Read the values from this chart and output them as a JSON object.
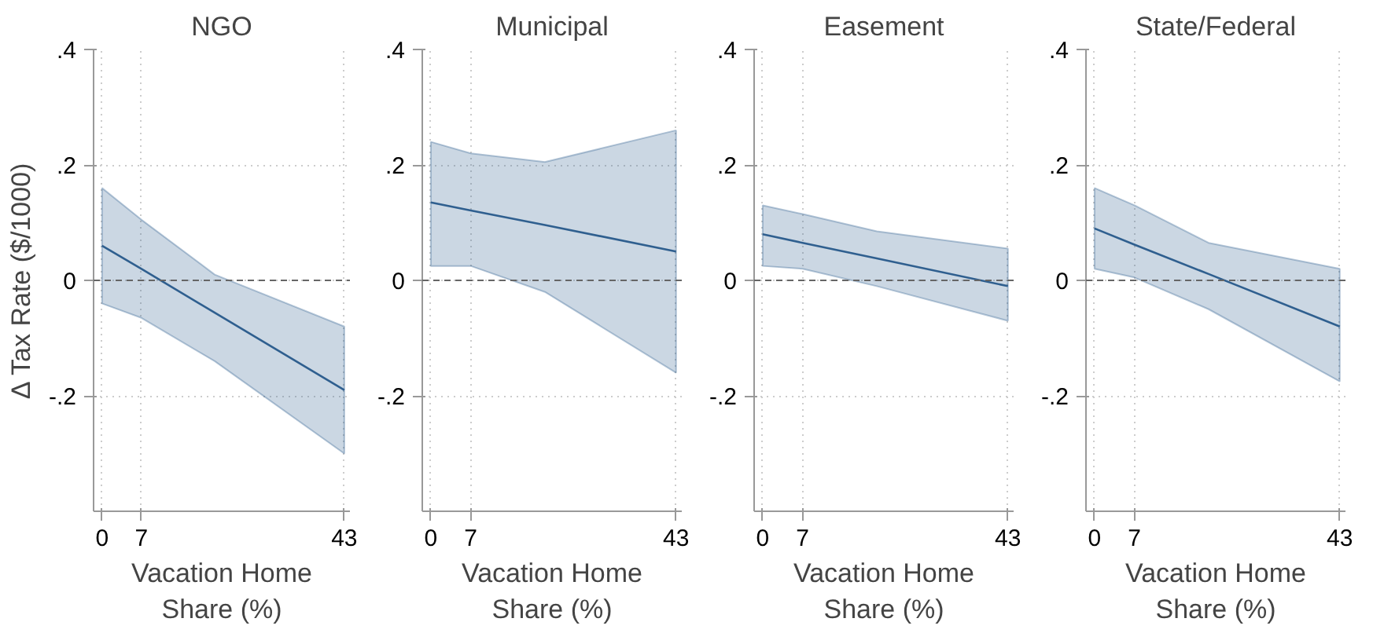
{
  "chart_data": [
    {
      "type": "line",
      "title": "NGO",
      "xlabel": "Vacation Home Share (%)",
      "ylabel": "Δ Tax Rate ($/1000)",
      "x": [
        0,
        7,
        20,
        43
      ],
      "xlim": [
        -1.5,
        44
      ],
      "xticks": [
        0,
        7,
        43
      ],
      "ylim": [
        -0.4,
        0.4
      ],
      "yticks": [
        {
          "value": 0.4,
          "label": ".4"
        },
        {
          "value": 0.2,
          "label": ".2"
        },
        {
          "value": 0,
          "label": "0"
        },
        {
          "value": -0.2,
          "label": "-.2"
        }
      ],
      "grid": true,
      "ref_lines": [
        {
          "axis": "y",
          "value": 0,
          "line_style": "dashed",
          "color": "#666666"
        }
      ],
      "series": [
        {
          "color": "#2f5f8f",
          "values": [
            0.06,
            0.02,
            -0.056,
            -0.19
          ],
          "lower": [
            -0.04,
            -0.065,
            -0.14,
            -0.3
          ],
          "upper": [
            0.16,
            0.105,
            0.01,
            -0.08
          ]
        }
      ]
    },
    {
      "type": "line",
      "title": "Municipal",
      "xlabel": "Vacation Home Share (%)",
      "x": [
        0,
        7,
        20,
        43
      ],
      "xlim": [
        -1.5,
        44
      ],
      "xticks": [
        0,
        7,
        43
      ],
      "ylim": [
        -0.4,
        0.4
      ],
      "yticks": [
        {
          "value": 0.4,
          "label": ".4"
        },
        {
          "value": 0.2,
          "label": ".2"
        },
        {
          "value": 0,
          "label": "0"
        },
        {
          "value": -0.2,
          "label": "-.2"
        }
      ],
      "grid": true,
      "ref_lines": [
        {
          "axis": "y",
          "value": 0,
          "line_style": "dashed",
          "color": "#666666"
        }
      ],
      "series": [
        {
          "color": "#2f5f8f",
          "values": [
            0.135,
            0.121,
            0.096,
            0.05
          ],
          "lower": [
            0.025,
            0.025,
            -0.02,
            -0.16
          ],
          "upper": [
            0.24,
            0.22,
            0.205,
            0.26
          ]
        }
      ]
    },
    {
      "type": "line",
      "title": "Easement",
      "xlabel": "Vacation Home Share (%)",
      "x": [
        0,
        7,
        20,
        43
      ],
      "xlim": [
        -1.5,
        44
      ],
      "xticks": [
        0,
        7,
        43
      ],
      "ylim": [
        -0.4,
        0.4
      ],
      "yticks": [
        {
          "value": 0.4,
          "label": ".4"
        },
        {
          "value": 0.2,
          "label": ".2"
        },
        {
          "value": 0,
          "label": "0"
        },
        {
          "value": -0.2,
          "label": "-.2"
        }
      ],
      "grid": true,
      "ref_lines": [
        {
          "axis": "y",
          "value": 0,
          "line_style": "dashed",
          "color": "#666666"
        }
      ],
      "series": [
        {
          "color": "#2f5f8f",
          "values": [
            0.08,
            0.065,
            0.038,
            -0.01
          ],
          "lower": [
            0.025,
            0.02,
            -0.01,
            -0.07
          ],
          "upper": [
            0.13,
            0.115,
            0.085,
            0.055
          ]
        }
      ]
    },
    {
      "type": "line",
      "title": "State/Federal",
      "xlabel": "Vacation Home Share (%)",
      "x": [
        0,
        7,
        20,
        43
      ],
      "xlim": [
        -1.5,
        44
      ],
      "xticks": [
        0,
        7,
        43
      ],
      "ylim": [
        -0.4,
        0.4
      ],
      "yticks": [
        {
          "value": 0.4,
          "label": ".4"
        },
        {
          "value": 0.2,
          "label": ".2"
        },
        {
          "value": 0,
          "label": "0"
        },
        {
          "value": -0.2,
          "label": "-.2"
        }
      ],
      "grid": true,
      "ref_lines": [
        {
          "axis": "y",
          "value": 0,
          "line_style": "dashed",
          "color": "#666666"
        }
      ],
      "series": [
        {
          "color": "#2f5f8f",
          "values": [
            0.09,
            0.062,
            0.011,
            -0.08
          ],
          "lower": [
            0.02,
            0.005,
            -0.05,
            -0.175
          ],
          "upper": [
            0.16,
            0.13,
            0.065,
            0.02
          ]
        }
      ]
    }
  ]
}
